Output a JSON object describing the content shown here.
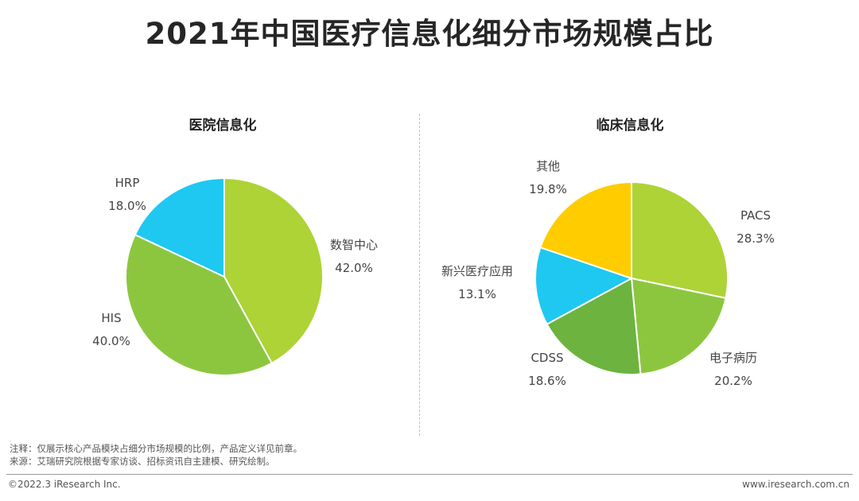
{
  "title": "2021年中国医疗信息化细分市场规模占比",
  "chart_data": [
    {
      "type": "pie",
      "title": "医院信息化",
      "slices": [
        {
          "label": "数智中心",
          "value": 42.0,
          "display": "42.0%",
          "color": "#add336"
        },
        {
          "label": "HIS",
          "value": 40.0,
          "display": "40.0%",
          "color": "#8cc63f"
        },
        {
          "label": "HRP",
          "value": 18.0,
          "display": "18.0%",
          "color": "#1ec8f0"
        }
      ]
    },
    {
      "type": "pie",
      "title": "临床信息化",
      "slices": [
        {
          "label": "PACS",
          "value": 28.3,
          "display": "28.3%",
          "color": "#add336"
        },
        {
          "label": "电子病历",
          "value": 20.2,
          "display": "20.2%",
          "color": "#8cc63f"
        },
        {
          "label": "CDSS",
          "value": 18.6,
          "display": "18.6%",
          "color": "#6db33f"
        },
        {
          "label": "新兴医疗应用",
          "value": 13.1,
          "display": "13.1%",
          "color": "#1ec8f0"
        },
        {
          "label": "其他",
          "value": 19.8,
          "display": "19.8%",
          "color": "#ffcc00"
        }
      ]
    }
  ],
  "notes": {
    "note1": "注释：仅展示核心产品模块占细分市场规模的比例，产品定义详见前章。",
    "note2": "来源：艾瑞研究院根据专家访谈、招标资讯自主建模、研究绘制。"
  },
  "footer": {
    "copyright": "©2022.3 iResearch Inc.",
    "website": "www.iresearch.com.cn"
  }
}
